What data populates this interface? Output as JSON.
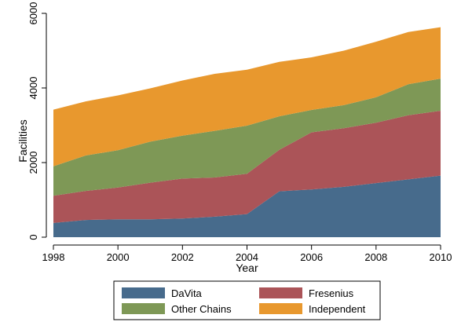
{
  "chart_data": {
    "type": "area",
    "stacked": true,
    "x": [
      1998,
      1999,
      2000,
      2001,
      2002,
      2003,
      2004,
      2005,
      2006,
      2007,
      2008,
      2009,
      2010
    ],
    "series": [
      {
        "name": "DaVita",
        "color": "#476b8c",
        "values": [
          380,
          460,
          480,
          480,
          500,
          550,
          620,
          1230,
          1280,
          1350,
          1450,
          1550,
          1650
        ]
      },
      {
        "name": "Fresenius",
        "color": "#ab5458",
        "values": [
          730,
          780,
          850,
          980,
          1070,
          1050,
          1080,
          1110,
          1530,
          1570,
          1620,
          1720,
          1740
        ]
      },
      {
        "name": "Other Chains",
        "color": "#7e9856",
        "values": [
          790,
          950,
          1000,
          1100,
          1150,
          1250,
          1290,
          900,
          600,
          620,
          680,
          830,
          860
        ]
      },
      {
        "name": "Independent",
        "color": "#e8982e",
        "values": [
          1520,
          1450,
          1470,
          1430,
          1480,
          1530,
          1500,
          1460,
          1410,
          1460,
          1490,
          1400,
          1380
        ]
      }
    ],
    "xlabel": "Year",
    "ylabel": "Facilities",
    "xticks": [
      1998,
      2000,
      2002,
      2004,
      2006,
      2008,
      2010
    ],
    "yticks": [
      0,
      2000,
      4000,
      6000
    ],
    "xlim": [
      1998,
      2010
    ],
    "ylim": [
      0,
      6000
    ],
    "grid": false,
    "legend_position": "bottom"
  }
}
